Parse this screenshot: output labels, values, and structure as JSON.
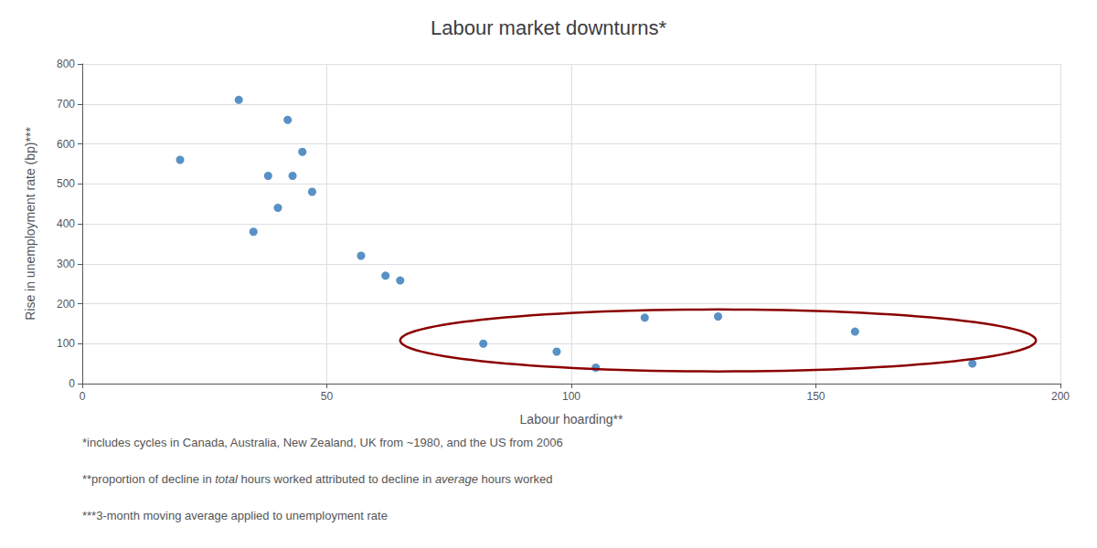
{
  "chart_data": {
    "type": "scatter",
    "title": "Labour market downturns*",
    "xlabel": "Labour hoarding**",
    "ylabel": "Rise in unemployment rate (bp)***",
    "x": [
      20,
      32,
      35,
      38,
      40,
      42,
      43,
      45,
      47,
      57,
      62,
      65,
      82,
      97,
      105,
      115,
      130,
      158,
      182
    ],
    "values": [
      560,
      710,
      380,
      520,
      440,
      660,
      520,
      580,
      480,
      320,
      270,
      258,
      100,
      80,
      40,
      165,
      168,
      130,
      50
    ],
    "color": "#2E75B6",
    "xlim": [
      0,
      200
    ],
    "ylim": [
      0,
      800
    ],
    "xticks": [
      0,
      50,
      100,
      150,
      200
    ],
    "yticks": [
      0,
      100,
      200,
      300,
      400,
      500,
      600,
      700,
      800
    ],
    "grid": true,
    "ellipse": {
      "center_x": 130,
      "center_y": 108,
      "width": 130,
      "height": 155,
      "color": "#8B0000"
    },
    "footnotes": [
      [
        {
          "text": "*includes cycles in Canada, Australia, New Zealand, UK from ~1980, and the US from 2006",
          "italic": false
        }
      ],
      [
        {
          "text": "**proportion of decline in ",
          "italic": false
        },
        {
          "text": "total",
          "italic": true
        },
        {
          "text": " hours worked attributed to decline in ",
          "italic": false
        },
        {
          "text": "average",
          "italic": true
        },
        {
          "text": " hours worked",
          "italic": false
        }
      ],
      [
        {
          "text": "***3-month moving average applied to unemployment rate",
          "italic": false
        }
      ]
    ]
  }
}
